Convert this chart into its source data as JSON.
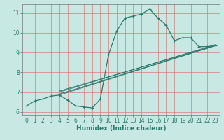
{
  "xlabel": "Humidex (Indice chaleur)",
  "xlim": [
    -0.5,
    23.5
  ],
  "ylim": [
    5.85,
    11.45
  ],
  "yticks": [
    6,
    7,
    8,
    9,
    10,
    11
  ],
  "xticks": [
    0,
    1,
    2,
    3,
    4,
    5,
    6,
    7,
    8,
    9,
    10,
    11,
    12,
    13,
    14,
    15,
    16,
    17,
    18,
    19,
    20,
    21,
    22,
    23
  ],
  "bg_color": "#c8e8e4",
  "line_color": "#2a7a6c",
  "grid_color": "#e07878",
  "main_x": [
    0,
    1,
    2,
    3,
    4,
    5,
    6,
    7,
    8,
    9,
    10,
    11,
    12,
    13,
    14,
    15,
    16,
    17,
    18,
    19,
    20,
    21,
    22,
    23
  ],
  "main_y": [
    6.3,
    6.55,
    6.65,
    6.8,
    6.85,
    6.6,
    6.3,
    6.25,
    6.2,
    6.65,
    8.9,
    10.1,
    10.75,
    10.85,
    10.95,
    11.2,
    10.75,
    10.4,
    9.6,
    9.75,
    9.75,
    9.3,
    9.3,
    9.35
  ],
  "trend_lines": [
    {
      "x": [
        4,
        23
      ],
      "y": [
        6.85,
        9.35
      ]
    },
    {
      "x": [
        4,
        23
      ],
      "y": [
        6.9,
        9.35
      ]
    },
    {
      "x": [
        4,
        23
      ],
      "y": [
        7.0,
        9.4
      ]
    },
    {
      "x": [
        4,
        23
      ],
      "y": [
        7.05,
        9.35
      ]
    }
  ]
}
